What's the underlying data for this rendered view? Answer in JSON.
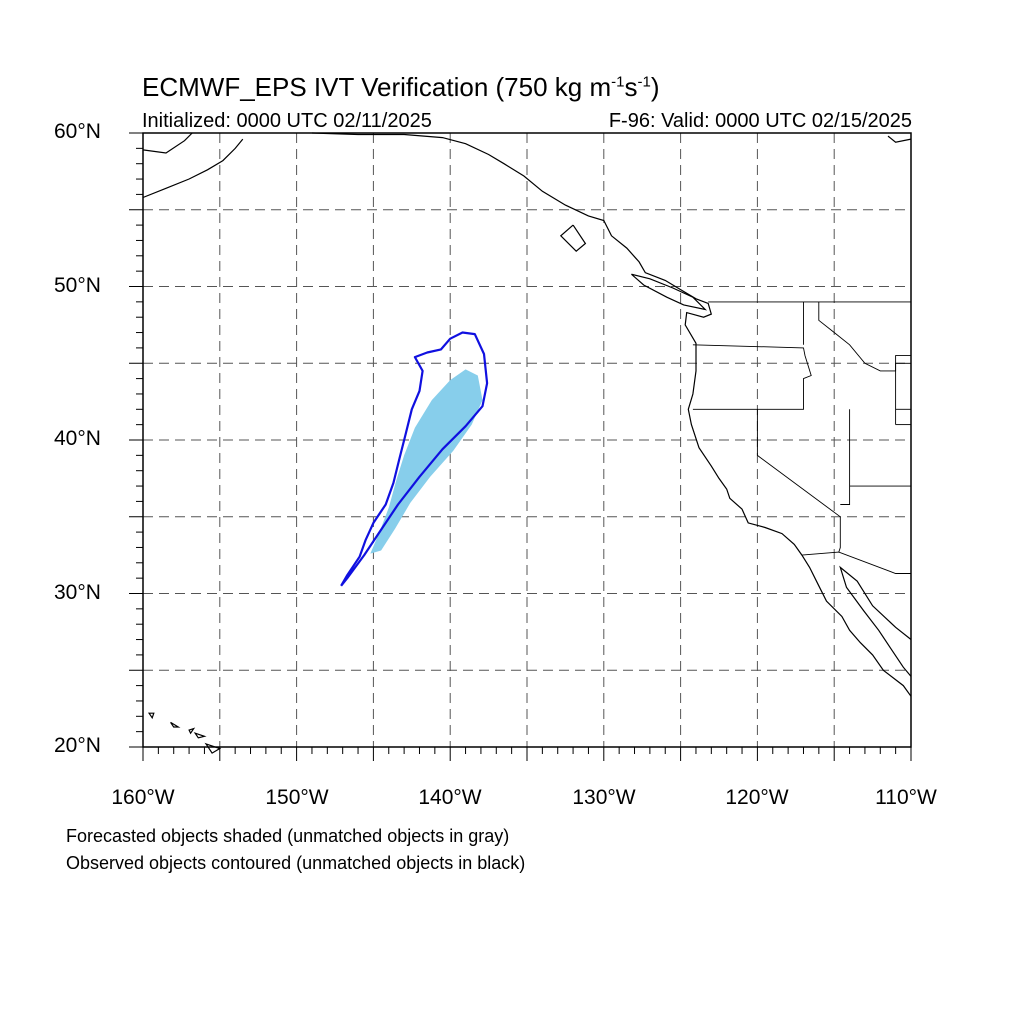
{
  "title": {
    "main": "ECMWF_EPS IVT Verification (750 kg m",
    "exp1": "-1",
    "mid": "s",
    "exp2": "-1",
    "close": ")"
  },
  "subtitle": {
    "initialized": "Initialized: 0000 UTC 02/11/2025",
    "valid": "F-96: Valid: 0000 UTC 02/15/2025"
  },
  "axes": {
    "lat_labels": [
      "60°N",
      "50°N",
      "40°N",
      "30°N",
      "20°N"
    ],
    "lon_labels": [
      "160°W",
      "150°W",
      "140°W",
      "130°W",
      "120°W",
      "110°W"
    ]
  },
  "footer": {
    "line1": "Forecasted objects shaded (unmatched objects in gray)",
    "line2": "Observed objects contoured (unmatched objects in black)"
  },
  "colors": {
    "forecast_fill": "#87ceeb",
    "observed_contour": "#1010e0",
    "coastline": "#000000",
    "grid": "#555555"
  },
  "map": {
    "lon_range": [
      -160,
      -110
    ],
    "lat_range": [
      20,
      60
    ],
    "grid_lons": [
      -155,
      -150,
      -145,
      -140,
      -135,
      -130,
      -125,
      -120,
      -115
    ],
    "grid_lats": [
      25,
      30,
      35,
      40,
      45,
      50,
      55
    ],
    "forecast_object": [
      [
        -145.2,
        32.6
      ],
      [
        -144.6,
        34.0
      ],
      [
        -144.0,
        35.6
      ],
      [
        -143.5,
        37.4
      ],
      [
        -143.0,
        39.0
      ],
      [
        -142.3,
        40.8
      ],
      [
        -141.2,
        42.6
      ],
      [
        -140.0,
        43.9
      ],
      [
        -139.0,
        44.6
      ],
      [
        -138.2,
        44.2
      ],
      [
        -137.9,
        42.6
      ],
      [
        -138.6,
        41.0
      ],
      [
        -139.8,
        39.3
      ],
      [
        -141.3,
        37.6
      ],
      [
        -142.6,
        35.9
      ],
      [
        -143.6,
        34.2
      ],
      [
        -144.5,
        32.8
      ]
    ],
    "observed_object": [
      [
        -147.1,
        30.5
      ],
      [
        -146.7,
        31.2
      ],
      [
        -145.9,
        32.4
      ],
      [
        -145.5,
        33.5
      ],
      [
        -145.0,
        34.6
      ],
      [
        -144.2,
        35.8
      ],
      [
        -143.7,
        37.2
      ],
      [
        -143.3,
        38.8
      ],
      [
        -142.9,
        40.4
      ],
      [
        -142.5,
        42.0
      ],
      [
        -142.0,
        43.2
      ],
      [
        -141.8,
        44.5
      ],
      [
        -142.3,
        45.4
      ],
      [
        -141.5,
        45.7
      ],
      [
        -140.6,
        45.9
      ],
      [
        -140.0,
        46.6
      ],
      [
        -139.2,
        47.0
      ],
      [
        -138.4,
        46.9
      ],
      [
        -137.8,
        45.6
      ],
      [
        -137.6,
        43.7
      ],
      [
        -137.9,
        42.2
      ],
      [
        -139.0,
        40.9
      ],
      [
        -140.5,
        39.4
      ],
      [
        -142.0,
        37.6
      ],
      [
        -143.4,
        35.8
      ],
      [
        -144.6,
        34.0
      ],
      [
        -145.6,
        32.5
      ],
      [
        -146.7,
        31.0
      ],
      [
        -147.1,
        30.5
      ]
    ],
    "coastlines": [
      [
        [
          -160.0,
          58.9
        ],
        [
          -158.5,
          58.7
        ],
        [
          -157.3,
          59.5
        ],
        [
          -156.8,
          60.0
        ]
      ],
      [
        [
          -160.0,
          55.8
        ],
        [
          -158.5,
          56.4
        ],
        [
          -157.0,
          57.0
        ],
        [
          -155.8,
          57.6
        ],
        [
          -154.8,
          58.2
        ],
        [
          -154.0,
          59.0
        ],
        [
          -153.5,
          59.6
        ]
      ],
      [
        [
          -149.0,
          60.0
        ],
        [
          -146.0,
          59.9
        ],
        [
          -143.0,
          59.9
        ],
        [
          -140.5,
          59.7
        ],
        [
          -139.0,
          59.3
        ],
        [
          -137.5,
          58.6
        ],
        [
          -136.5,
          58.0
        ],
        [
          -135.2,
          57.2
        ],
        [
          -134.0,
          56.2
        ],
        [
          -132.5,
          55.3
        ],
        [
          -131.0,
          54.6
        ],
        [
          -130.0,
          54.3
        ],
        [
          -129.5,
          53.3
        ],
        [
          -128.5,
          52.5
        ],
        [
          -127.7,
          51.6
        ],
        [
          -127.3,
          50.9
        ],
        [
          -126.0,
          50.4
        ],
        [
          -125.0,
          49.8
        ],
        [
          -124.0,
          49.2
        ],
        [
          -123.2,
          48.9
        ],
        [
          -123.0,
          48.2
        ],
        [
          -123.5,
          48.0
        ],
        [
          -124.6,
          48.3
        ],
        [
          -124.7,
          47.5
        ],
        [
          -124.0,
          46.3
        ],
        [
          -124.0,
          44.5
        ],
        [
          -124.2,
          43.0
        ],
        [
          -124.5,
          42.0
        ],
        [
          -124.3,
          41.0
        ],
        [
          -123.8,
          39.5
        ],
        [
          -123.0,
          38.3
        ],
        [
          -122.5,
          37.5
        ],
        [
          -122.0,
          36.8
        ],
        [
          -121.8,
          36.2
        ],
        [
          -121.0,
          35.5
        ],
        [
          -120.6,
          34.6
        ],
        [
          -119.5,
          34.3
        ],
        [
          -118.4,
          33.9
        ],
        [
          -117.6,
          33.2
        ],
        [
          -117.1,
          32.5
        ],
        [
          -116.6,
          31.7
        ],
        [
          -116.0,
          30.5
        ],
        [
          -115.5,
          29.5
        ],
        [
          -114.5,
          28.5
        ],
        [
          -114.0,
          27.6
        ],
        [
          -113.3,
          26.8
        ],
        [
          -112.5,
          26.0
        ],
        [
          -111.8,
          25.0
        ],
        [
          -110.5,
          24.0
        ],
        [
          -110.0,
          23.3
        ]
      ],
      [
        [
          -110.0,
          27.0
        ],
        [
          -111.0,
          27.8
        ],
        [
          -112.5,
          29.2
        ],
        [
          -113.5,
          30.8
        ],
        [
          -114.6,
          31.7
        ],
        [
          -114.2,
          30.4
        ],
        [
          -113.1,
          28.9
        ],
        [
          -112.1,
          27.6
        ],
        [
          -111.3,
          26.4
        ],
        [
          -110.5,
          25.2
        ],
        [
          -110.0,
          24.6
        ]
      ],
      [
        [
          -132.0,
          54.0
        ],
        [
          -132.8,
          53.3
        ],
        [
          -131.8,
          52.3
        ],
        [
          -131.2,
          52.8
        ],
        [
          -132.0,
          54.0
        ]
      ],
      [
        [
          -128.2,
          50.8
        ],
        [
          -127.0,
          50.5
        ],
        [
          -125.5,
          49.9
        ],
        [
          -124.2,
          49.3
        ],
        [
          -123.4,
          48.5
        ],
        [
          -124.8,
          48.8
        ],
        [
          -125.9,
          49.3
        ],
        [
          -127.4,
          50.1
        ],
        [
          -128.2,
          50.8
        ]
      ],
      [
        [
          -110.0,
          59.6
        ],
        [
          -111.0,
          59.4
        ],
        [
          -111.5,
          59.8
        ]
      ]
    ],
    "islands": [
      [
        [
          -159.6,
          22.2
        ],
        [
          -159.3,
          22.2
        ],
        [
          -159.4,
          21.9
        ],
        [
          -159.6,
          22.2
        ]
      ],
      [
        [
          -158.2,
          21.6
        ],
        [
          -157.7,
          21.3
        ],
        [
          -158.0,
          21.3
        ],
        [
          -158.2,
          21.6
        ]
      ],
      [
        [
          -157.0,
          21.1
        ],
        [
          -156.7,
          21.2
        ],
        [
          -156.9,
          20.9
        ],
        [
          -157.0,
          21.1
        ]
      ],
      [
        [
          -156.6,
          20.9
        ],
        [
          -156.0,
          20.7
        ],
        [
          -156.4,
          20.6
        ],
        [
          -156.6,
          20.9
        ]
      ],
      [
        [
          -155.9,
          20.2
        ],
        [
          -155.0,
          19.9
        ],
        [
          -155.5,
          19.6
        ],
        [
          -155.9,
          20.2
        ]
      ]
    ],
    "borders": [
      [
        [
          -123.2,
          49.0
        ],
        [
          -110.0,
          49.0
        ]
      ],
      [
        [
          -124.2,
          46.2
        ],
        [
          -117.0,
          46.0
        ],
        [
          -116.9,
          45.5
        ],
        [
          -116.5,
          44.2
        ],
        [
          -117.0,
          44.0
        ],
        [
          -117.0,
          42.0
        ],
        [
          -124.2,
          42.0
        ]
      ],
      [
        [
          -117.0,
          49.0
        ],
        [
          -117.0,
          46.2
        ]
      ],
      [
        [
          -116.0,
          49.0
        ],
        [
          -116.0,
          47.8
        ],
        [
          -115.0,
          47.0
        ],
        [
          -114.0,
          46.2
        ],
        [
          -113.0,
          45.0
        ],
        [
          -112.0,
          44.5
        ],
        [
          -111.0,
          44.5
        ],
        [
          -111.0,
          45.5
        ],
        [
          -110.0,
          45.5
        ]
      ],
      [
        [
          -120.0,
          42.0
        ],
        [
          -120.0,
          39.0
        ],
        [
          -114.6,
          35.0
        ],
        [
          -114.6,
          33.0
        ],
        [
          -114.7,
          32.7
        ]
      ],
      [
        [
          -114.0,
          42.0
        ],
        [
          -114.0,
          35.8
        ],
        [
          -114.6,
          35.8
        ]
      ],
      [
        [
          -114.0,
          37.0
        ],
        [
          -110.0,
          37.0
        ]
      ],
      [
        [
          -117.1,
          32.5
        ],
        [
          -114.7,
          32.7
        ],
        [
          -111.0,
          31.3
        ],
        [
          -110.0,
          31.3
        ]
      ],
      [
        [
          -111.0,
          45.0
        ],
        [
          -110.0,
          45.0
        ]
      ],
      [
        [
          -111.0,
          42.0
        ],
        [
          -110.0,
          42.0
        ]
      ],
      [
        [
          -111.0,
          41.0
        ],
        [
          -110.0,
          41.0
        ]
      ],
      [
        [
          -111.0,
          45.0
        ],
        [
          -111.0,
          41.0
        ]
      ]
    ]
  }
}
